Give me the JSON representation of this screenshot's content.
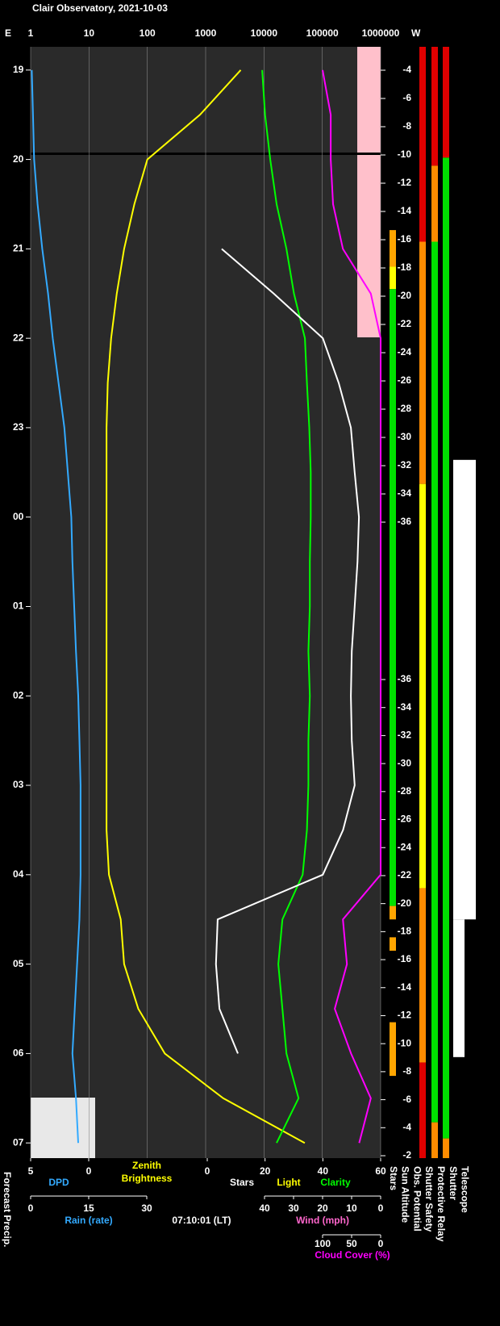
{
  "chart_data": {
    "type": "line",
    "title": "Clair Observatory, 2021-10-03",
    "timestamp": "07:10:01 (LT)",
    "left_edge_label": "E",
    "right_edge_label": "W",
    "top_axis": {
      "log": true,
      "lim": [
        1,
        1000000
      ],
      "ticks": [
        1,
        10,
        100,
        1000,
        10000,
        100000,
        1000000
      ]
    },
    "hours": {
      "lim": [
        18.74,
        31.17
      ],
      "ticks": [
        {
          "value": 19,
          "label": "19"
        },
        {
          "value": 20,
          "label": "20"
        },
        {
          "value": 21,
          "label": "21"
        },
        {
          "value": 22,
          "label": "22"
        },
        {
          "value": 23,
          "label": "23"
        },
        {
          "value": 24,
          "label": "00"
        },
        {
          "value": 25,
          "label": "01"
        },
        {
          "value": 26,
          "label": "02"
        },
        {
          "value": 27,
          "label": "03"
        },
        {
          "value": 28,
          "label": "04"
        },
        {
          "value": 29,
          "label": "05"
        },
        {
          "value": 30,
          "label": "06"
        },
        {
          "value": 31,
          "label": "07"
        }
      ]
    },
    "sun_altitude_ticks": [
      -4,
      -6,
      -8,
      -10,
      -12,
      -14,
      -16,
      -18,
      -20,
      -22,
      -24,
      -26,
      -28,
      -30,
      -32,
      -34,
      -36,
      -36,
      -34,
      -32,
      -30,
      -28,
      -26,
      -24,
      -22,
      -20,
      -18,
      -16,
      -14,
      -12,
      -10,
      -8,
      -6,
      -4,
      -2
    ],
    "x": [
      19,
      19.5,
      20,
      20.5,
      21,
      21.5,
      22,
      22.5,
      23,
      23.5,
      24,
      24.5,
      25,
      25.5,
      26,
      26.5,
      27,
      27.5,
      28,
      28.5,
      29,
      29.5,
      30,
      30.5,
      31
    ],
    "scales": {
      "dpd": {
        "label": "DPD",
        "lim": [
          5,
          0
        ],
        "ticks": [
          5,
          0
        ]
      },
      "zenith": {
        "label": [
          "Zenith",
          "Brightness"
        ]
      },
      "stars": {
        "label": "Stars",
        "lim": [
          0,
          60
        ],
        "ticks": [
          0,
          20,
          40,
          60
        ]
      },
      "light": {
        "label": "Light"
      },
      "clarity": {
        "label": "Clarity"
      },
      "rain": {
        "label": "Rain (rate)",
        "lim": [
          0,
          30
        ],
        "ticks": [
          0,
          15,
          30
        ]
      },
      "wind": {
        "label": "Wind (mph)",
        "lim": [
          40,
          0
        ],
        "ticks": [
          40,
          30,
          20,
          10,
          0
        ]
      },
      "cloud": {
        "label": "Cloud Cover (%)",
        "lim": [
          100,
          0
        ],
        "ticks": [
          100,
          50,
          0
        ]
      }
    },
    "series": [
      {
        "name": "Zenith Brightness",
        "scale": "top_axis",
        "color": "#ffff00",
        "values": [
          4000,
          800,
          100,
          60,
          40,
          30,
          24,
          21,
          20,
          20,
          20,
          20,
          20,
          20,
          20,
          20,
          20,
          20,
          22,
          35,
          40,
          70,
          200,
          2000,
          50000
        ]
      },
      {
        "name": "Clarity",
        "scale": "stars",
        "color": "#00ff00",
        "values": [
          19,
          20,
          21.8,
          24,
          27.4,
          30,
          33.8,
          34.5,
          35.3,
          35.8,
          35.8,
          35.5,
          35.5,
          35,
          35.5,
          35,
          35,
          34.5,
          33,
          26,
          24.6,
          26,
          27.4,
          31.6,
          24
        ]
      },
      {
        "name": "Stars",
        "scale": "stars",
        "color": "#ffffff",
        "values": [
          null,
          null,
          null,
          null,
          5,
          23,
          40,
          45.5,
          49.7,
          51,
          52.5,
          52,
          51,
          50,
          49.7,
          50,
          51,
          47,
          40,
          3.6,
          3,
          4.2,
          10.6,
          null,
          null
        ]
      },
      {
        "name": "Cloud Cover",
        "scale": "cloud",
        "color": "#ff00ff",
        "values": [
          100,
          86,
          86,
          82,
          65,
          17,
          0,
          0,
          0,
          0,
          0,
          0,
          0,
          0,
          0,
          0,
          0,
          0,
          0,
          65,
          58,
          79,
          51,
          17,
          37
        ]
      },
      {
        "name": "DPD",
        "scale": "dpd",
        "color": "#33aaff",
        "values": [
          4.9,
          4.8,
          4.7,
          4.4,
          4,
          3.5,
          3.1,
          2.6,
          2.1,
          1.8,
          1.5,
          1.4,
          1.25,
          1.1,
          0.9,
          0.8,
          0.7,
          0.7,
          0.7,
          0.8,
          1,
          1.2,
          1.4,
          1.1,
          0.9
        ]
      }
    ],
    "status_columns": [
      {
        "name": "Stars",
        "segments": [
          {
            "from": 20.79,
            "to": 21.2,
            "color": "#ffa500"
          },
          {
            "from": 21.2,
            "to": 21.45,
            "color": "#ffff00"
          },
          {
            "from": 21.45,
            "to": 28.35,
            "color": "#00e000"
          },
          {
            "from": 28.35,
            "to": 28.5,
            "color": "#ffa500"
          },
          {
            "from": 28.7,
            "to": 28.85,
            "color": "#ffa500"
          },
          {
            "from": 29.65,
            "to": 30.25,
            "color": "#ffa500"
          }
        ]
      },
      {
        "name": "Sun Altitude",
        "segments": []
      },
      {
        "name": "Obs. Potential",
        "segments": [
          {
            "from": 18.74,
            "to": 20.92,
            "color": "#e00000"
          },
          {
            "from": 20.92,
            "to": 23.63,
            "color": "#ff8c00"
          },
          {
            "from": 23.63,
            "to": 28.15,
            "color": "#ffff00"
          },
          {
            "from": 28.15,
            "to": 30.1,
            "color": "#ff8c00"
          },
          {
            "from": 30.1,
            "to": 31.17,
            "color": "#e00000"
          }
        ]
      },
      {
        "name": "Shutter Safety",
        "segments": [
          {
            "from": 18.74,
            "to": 20.07,
            "color": "#e00000"
          },
          {
            "from": 20.07,
            "to": 20.92,
            "color": "#ff8c00"
          },
          {
            "from": 20.92,
            "to": 30.77,
            "color": "#00e000"
          },
          {
            "from": 30.77,
            "to": 31.17,
            "color": "#ff8c00"
          }
        ]
      },
      {
        "name": "Protective Relay",
        "segments": [
          {
            "from": 18.74,
            "to": 19.98,
            "color": "#e00000"
          },
          {
            "from": 19.98,
            "to": 30.95,
            "color": "#00e000"
          },
          {
            "from": 30.95,
            "to": 31.17,
            "color": "#ff8c00"
          }
        ]
      },
      {
        "name": "Shutter",
        "segments": []
      },
      {
        "name": "Telescope",
        "segments": [
          {
            "from": 23.36,
            "to": 28.5,
            "color": "#ffffff"
          },
          {
            "from": 28.5,
            "to": 30.04,
            "color": "#ffffff"
          }
        ]
      }
    ],
    "forecast_label": "Forecast Precip."
  }
}
